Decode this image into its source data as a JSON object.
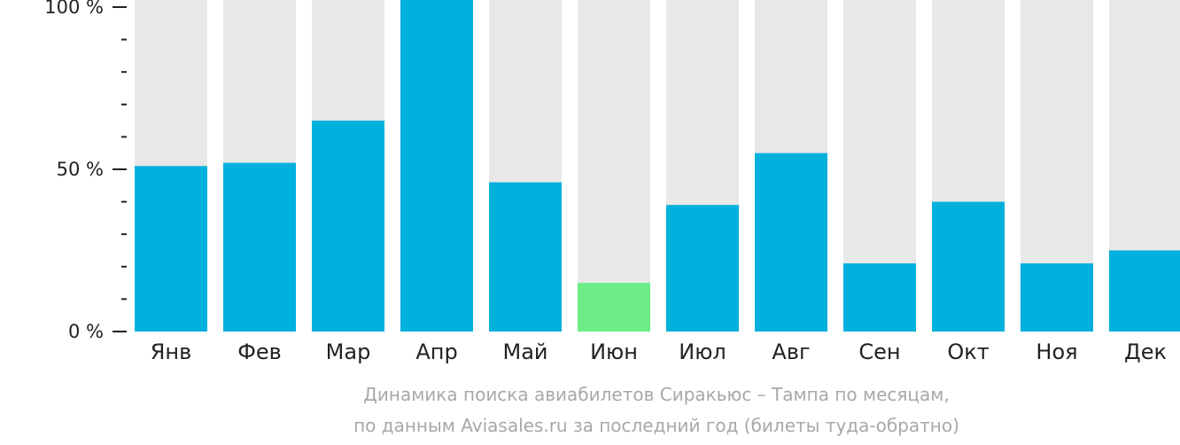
{
  "chart_data": {
    "type": "bar",
    "title": "",
    "caption_lines": [
      "Динамика поиска авиабилетов Сиракьюс – Тампа по месяцам,",
      "по данным Aviasales.ru за последний год (билеты туда-обратно)"
    ],
    "xlabel": "",
    "ylabel": "",
    "ylim": [
      0,
      100
    ],
    "y_ticks": [
      {
        "value": 0,
        "label": "0 %"
      },
      {
        "value": 50,
        "label": "50 %"
      },
      {
        "value": 100,
        "label": "100 %"
      }
    ],
    "y_minor_step": 10,
    "categories": [
      "Янв",
      "Фев",
      "Мар",
      "Апр",
      "Май",
      "Июн",
      "Июл",
      "Авг",
      "Сен",
      "Окт",
      "Ноя",
      "Дек"
    ],
    "values": [
      51,
      52,
      65,
      105,
      46,
      15,
      39,
      55,
      21,
      40,
      21,
      25
    ],
    "highlight_index": 5,
    "colors": {
      "bar": "#00b0dd",
      "highlight": "#6ced85",
      "background_bar": "#e8e8e8",
      "axis": "#222222",
      "caption": "#a8a8a8"
    },
    "grid": false,
    "legend": "none"
  }
}
